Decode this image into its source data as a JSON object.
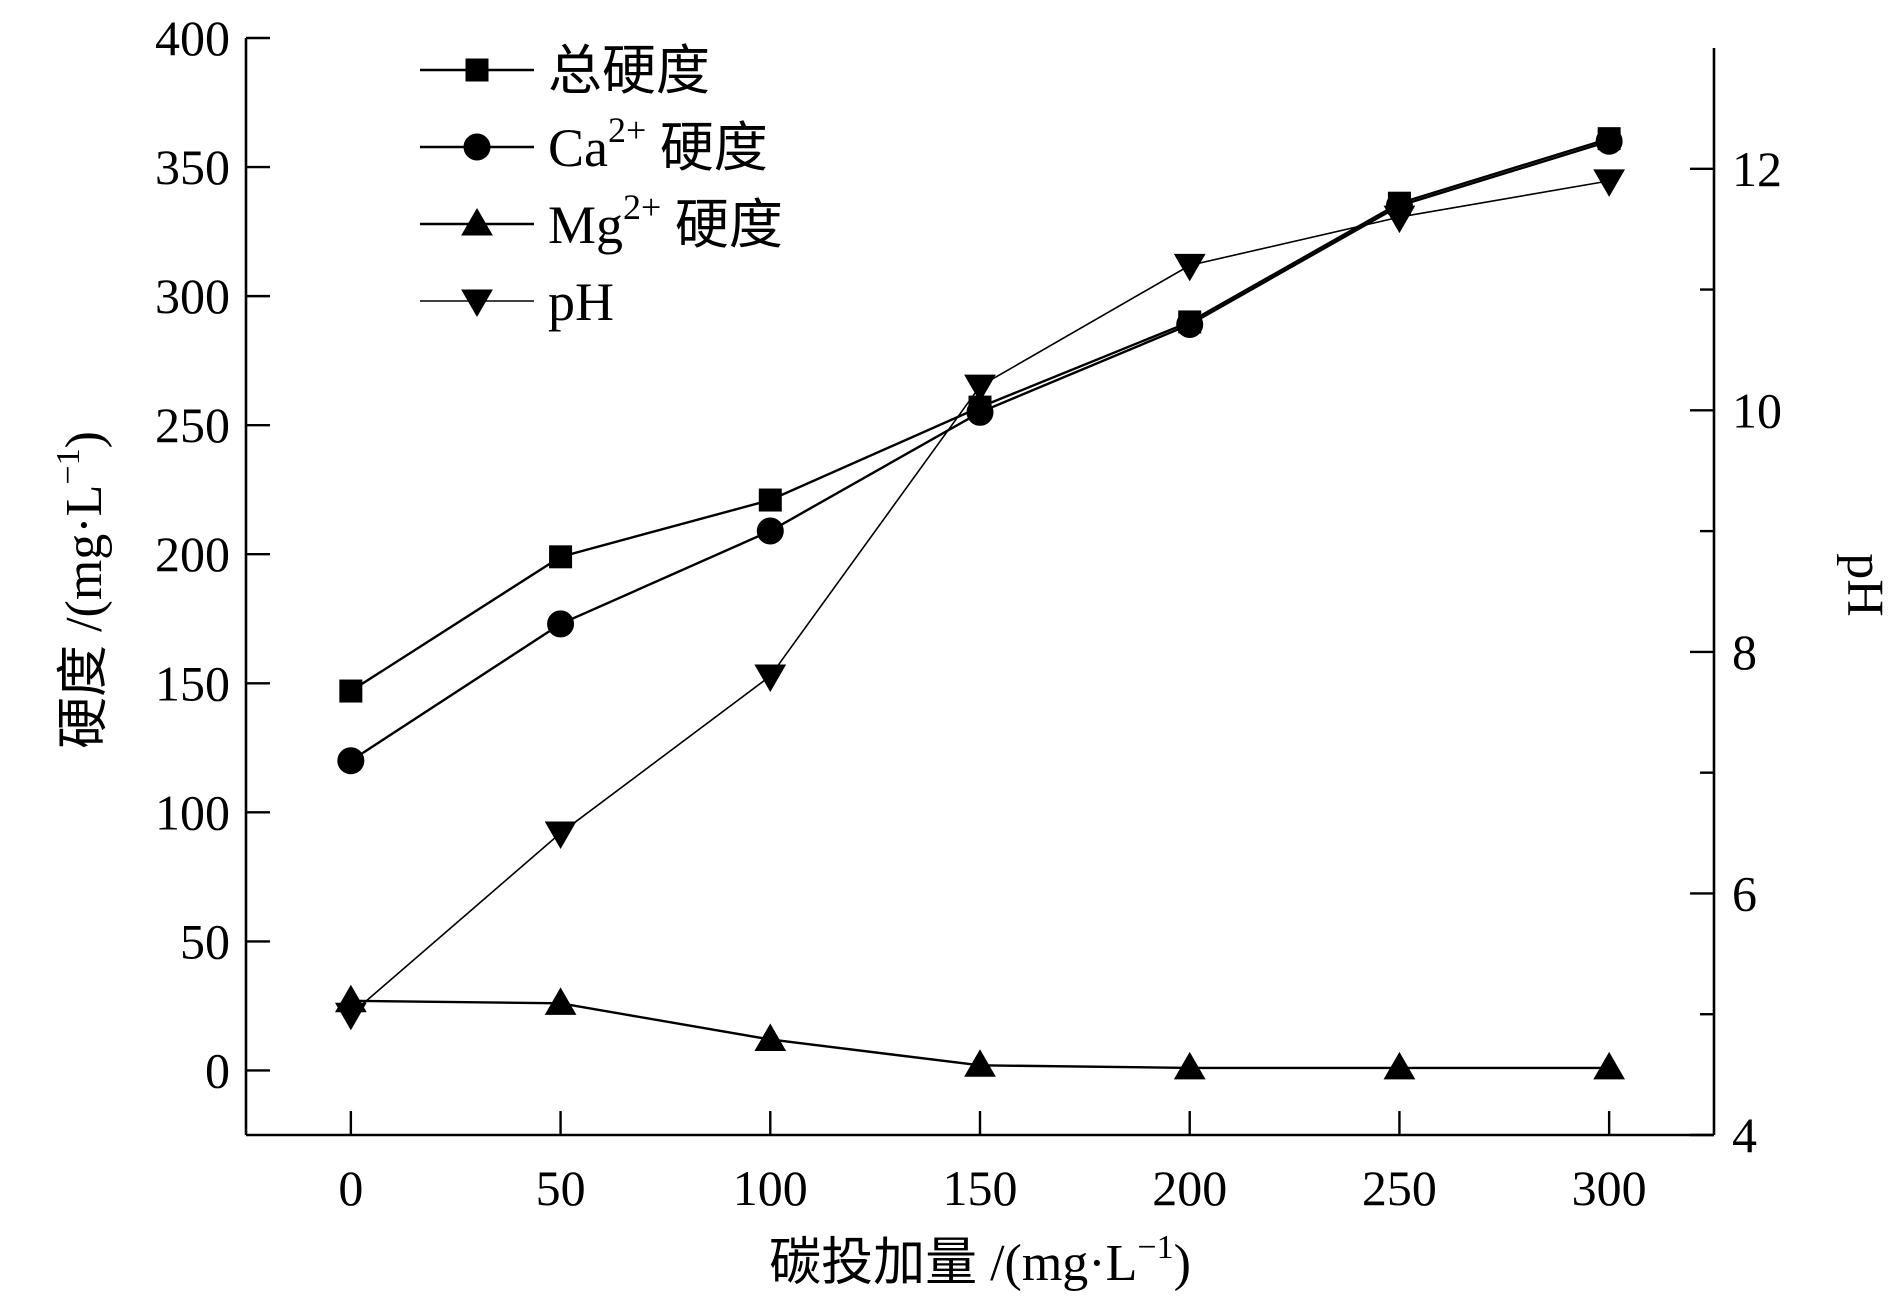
{
  "chart_data": {
    "type": "line",
    "x": [
      0,
      50,
      100,
      150,
      200,
      250,
      300
    ],
    "xlabel": {
      "main": "碳投加量 /(mg·L",
      "sup": "−1",
      "end": ")"
    },
    "ylabel_left": {
      "main": "硬度 /(mg·L",
      "sup": "−1",
      "end": ")"
    },
    "ylabel_right": "pH",
    "xlim": [
      -25,
      325
    ],
    "ylim_left": [
      -25,
      400
    ],
    "ylim_right": [
      4,
      13
    ],
    "xticks": [
      0,
      50,
      100,
      150,
      200,
      250,
      300
    ],
    "yticks_left": [
      0,
      50,
      100,
      150,
      200,
      250,
      300,
      350,
      400
    ],
    "yticks_right": [
      4,
      6,
      8,
      10,
      12
    ],
    "legend_position": "top-left",
    "grid": false,
    "series": [
      {
        "name": "总硬度",
        "sup": "",
        "suffix": "",
        "marker": "square",
        "axis": "left",
        "values": [
          147,
          199,
          221,
          257,
          290,
          336,
          361
        ]
      },
      {
        "name": "Ca",
        "sup": "2+",
        "suffix": " 硬度",
        "marker": "circle",
        "axis": "left",
        "values": [
          120,
          173,
          209,
          255,
          289,
          335,
          360
        ]
      },
      {
        "name": "Mg",
        "sup": "2+",
        "suffix": " 硬度",
        "marker": "triangle-up",
        "axis": "left",
        "values": [
          27,
          26,
          12,
          2,
          1,
          1,
          1
        ]
      },
      {
        "name": "pH",
        "sup": "",
        "suffix": "",
        "marker": "triangle-down",
        "axis": "right",
        "values": [
          5.0,
          6.5,
          7.8,
          10.2,
          11.2,
          11.6,
          11.9
        ]
      }
    ]
  }
}
